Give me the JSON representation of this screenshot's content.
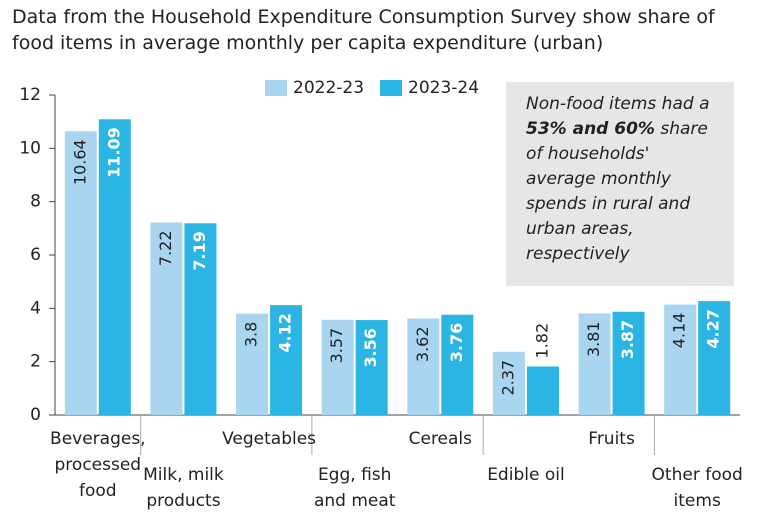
{
  "chart_data": {
    "type": "bar",
    "title": "Data from the Household Expenditure Consumption Survey show share of food items in average monthly per capita expenditure (urban)",
    "categories": [
      "Beverages, processed food",
      "Milk, milk products",
      "Vegetables",
      "Egg, fish and meat",
      "Cereals",
      "Edible oil",
      "Fruits",
      "Other food items"
    ],
    "series": [
      {
        "name": "2022-23",
        "color": "#a9d5f0",
        "values": [
          10.64,
          7.22,
          3.8,
          3.57,
          3.62,
          2.37,
          3.81,
          4.14
        ]
      },
      {
        "name": "2023-24",
        "color": "#2bb5e4",
        "values": [
          11.09,
          7.19,
          4.12,
          3.56,
          3.76,
          1.82,
          3.87,
          4.27
        ]
      }
    ],
    "ylim": [
      0,
      12
    ],
    "yticks": [
      0,
      2,
      4,
      6,
      8,
      10,
      12
    ],
    "grid": false,
    "annotation": {
      "text_before": "Non-food items had a",
      "emphasis": "53% and 60%",
      "text_after": "share of households' average monthly spends in rural and urban areas, respectively"
    }
  }
}
